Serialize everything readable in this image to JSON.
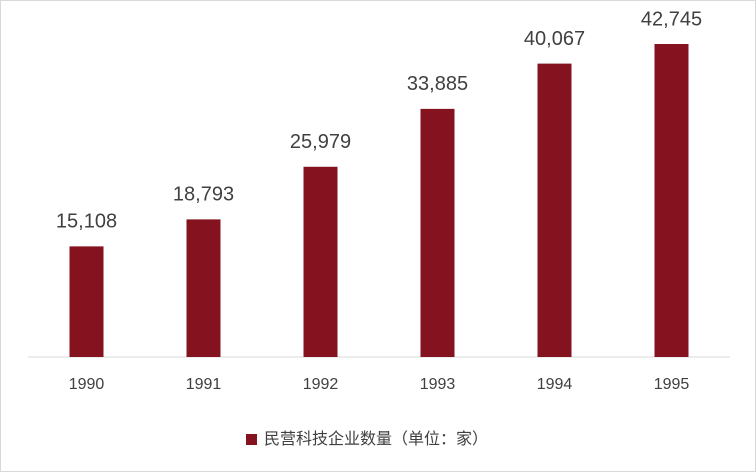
{
  "chart_data": {
    "type": "bar",
    "categories": [
      "1990",
      "1991",
      "1992",
      "1993",
      "1994",
      "1995"
    ],
    "series": [
      {
        "name": "民营科技企业数量（单位：家）",
        "color": "#85121f",
        "values": [
          15108,
          18793,
          25979,
          33885,
          40067,
          42745
        ],
        "value_labels": [
          "15,108",
          "18,793",
          "25,979",
          "33,885",
          "40,067",
          "42,745"
        ]
      }
    ],
    "legend": "bottom"
  }
}
